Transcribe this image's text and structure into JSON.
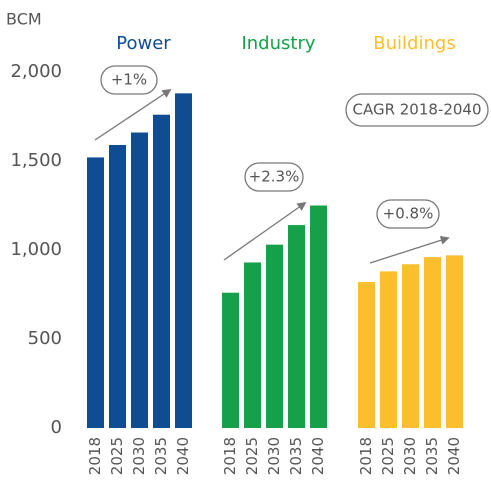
{
  "chart_data": {
    "type": "bar",
    "ylabel": "BCM",
    "ylim": [
      0,
      2000
    ],
    "yticks": [
      0,
      500,
      {
        "value": 1000,
        "label": "1,000"
      },
      {
        "value": 1500,
        "label": "1,500"
      },
      {
        "value": 2000,
        "label": "2,000"
      }
    ],
    "categories": [
      "2018",
      "2025",
      "2030",
      "2035",
      "2040"
    ],
    "series": [
      {
        "name": "Power",
        "color": "#0f4c92",
        "values": [
          1520,
          1590,
          1660,
          1760,
          1880
        ],
        "annotation": "+1%"
      },
      {
        "name": "Industry",
        "color": "#16a04a",
        "values": [
          760,
          930,
          1030,
          1140,
          1250
        ],
        "annotation": "+2.3%"
      },
      {
        "name": "Buildings",
        "color": "#fbbf2d",
        "values": [
          820,
          880,
          920,
          960,
          970
        ],
        "annotation": "+0.8%"
      }
    ],
    "legend_note": "CAGR 2018-2040"
  }
}
